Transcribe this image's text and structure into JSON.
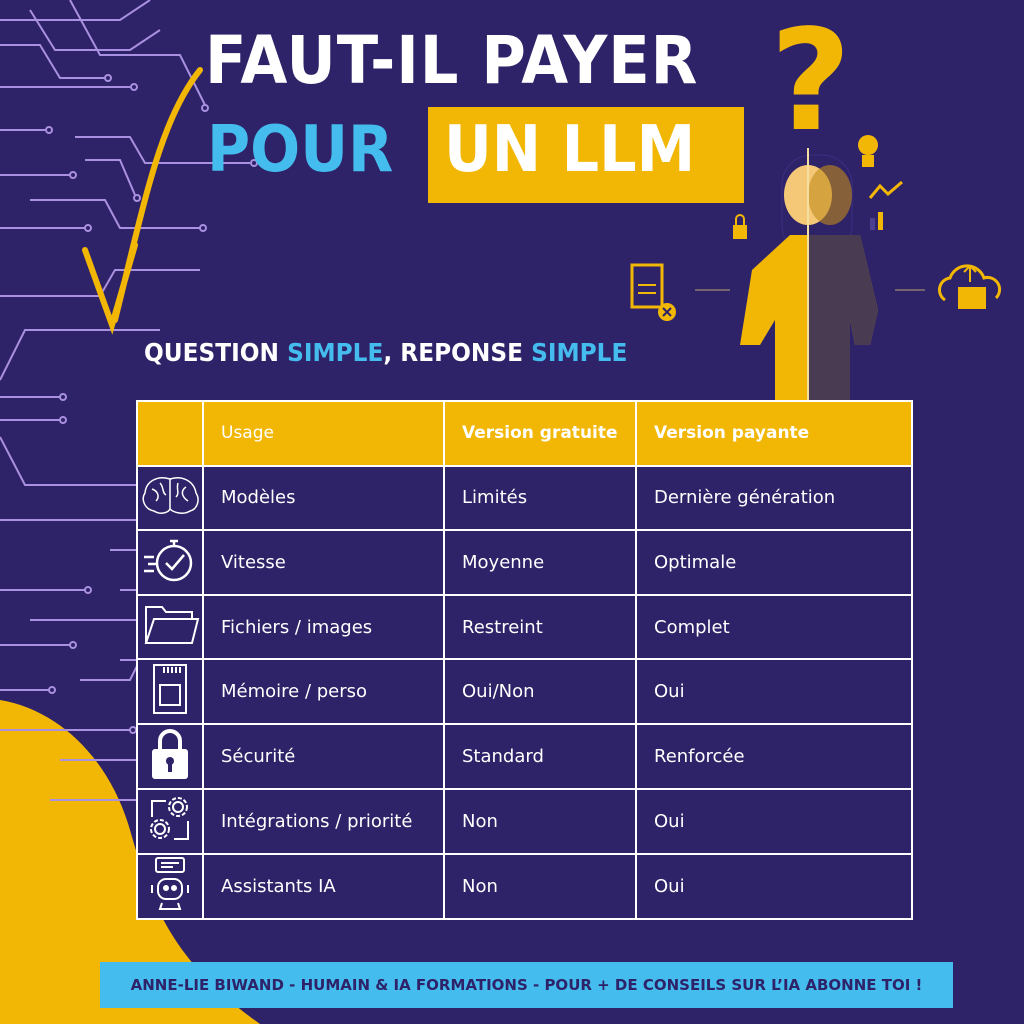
{
  "title": {
    "line1": "FAUT-IL PAYER",
    "line2_blue": "POUR",
    "line2_box": "UN LLM",
    "question_mark": "?"
  },
  "subtitle": {
    "part1": "QUESTION ",
    "part2": "SIMPLE",
    "part3": ", REPONSE ",
    "part4": "SIMPLE"
  },
  "colors": {
    "background": "#2e2268",
    "accent_yellow": "#f2b705",
    "accent_blue": "#45bcee",
    "circuit": "#a990e0"
  },
  "table": {
    "headers": [
      "Usage",
      "Version gratuite",
      "Version payante"
    ],
    "rows": [
      {
        "icon": "brain-icon",
        "usage": "Modèles",
        "free": "Limités",
        "paid": "Dernière génération"
      },
      {
        "icon": "stopwatch-check-icon",
        "usage": "Vitesse",
        "free": "Moyenne",
        "paid": "Optimale"
      },
      {
        "icon": "folder-icon",
        "usage": "Fichiers / images",
        "free": "Restreint",
        "paid": "Complet"
      },
      {
        "icon": "memory-card-icon",
        "usage": "Mémoire / perso",
        "free": "Oui/Non",
        "paid": "Oui"
      },
      {
        "icon": "padlock-icon",
        "usage": "Sécurité",
        "free": "Standard",
        "paid": "Renforcée"
      },
      {
        "icon": "gears-integration-icon",
        "usage": "Intégrations / priorité",
        "free": "Non",
        "paid": "Oui"
      },
      {
        "icon": "robot-assistant-icon",
        "usage": "Assistants IA",
        "free": "Non",
        "paid": "Oui"
      }
    ]
  },
  "footer": "ANNE-LIE BIWAND - HUMAIN & IA FORMATIONS - POUR + DE CONSEILS SUR L’IA ABONNE TOI !"
}
